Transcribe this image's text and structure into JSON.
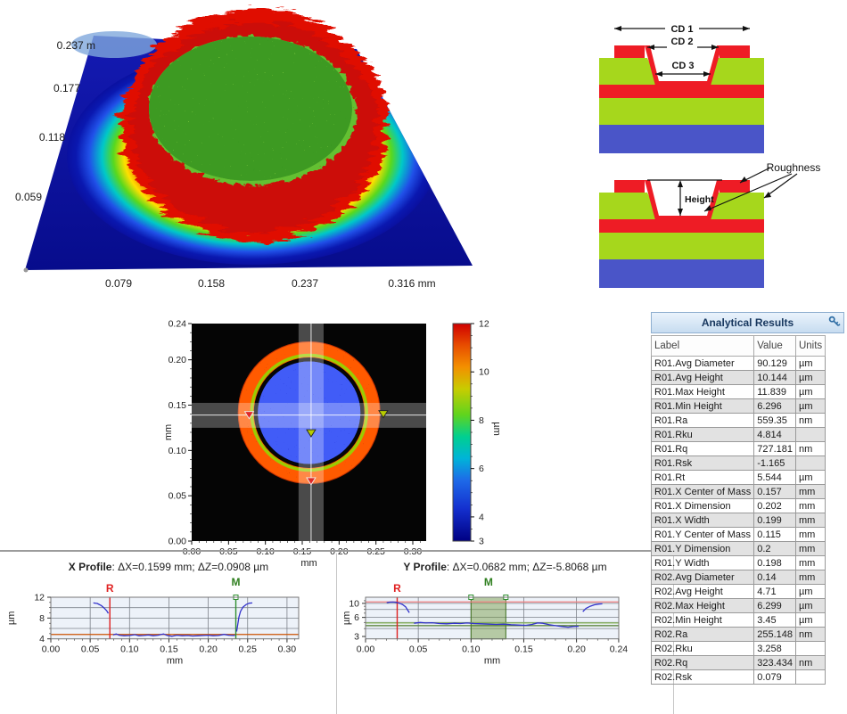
{
  "surface3d": {
    "y_axis_labels": [
      "0.237 m",
      "0.177",
      "0.118",
      "0.059"
    ],
    "x_axis_labels": [
      "0.079",
      "0.158",
      "0.237",
      "0.316 mm"
    ]
  },
  "schematic": {
    "cd1": "CD 1",
    "cd2": "CD 2",
    "cd3": "CD 3",
    "height": "Height",
    "roughness": "Roughness",
    "colors": {
      "red": "#EE1C25",
      "green": "#A6D71C",
      "blue": "#4A55C8"
    }
  },
  "results": {
    "title": "Analytical Results",
    "icon": "key-icon",
    "columns": [
      "Label",
      "Value",
      "Units"
    ],
    "rows": [
      [
        "R01.Avg Diameter",
        "90.129",
        "µm"
      ],
      [
        "R01.Avg Height",
        "10.144",
        "µm"
      ],
      [
        "R01.Max Height",
        "11.839",
        "µm"
      ],
      [
        "R01.Min Height",
        "6.296",
        "µm"
      ],
      [
        "R01.Ra",
        "559.35",
        "nm"
      ],
      [
        "R01.Rku",
        "4.814",
        ""
      ],
      [
        "R01.Rq",
        "727.181",
        "nm"
      ],
      [
        "R01.Rsk",
        "-1.165",
        ""
      ],
      [
        "R01.Rt",
        "5.544",
        "µm"
      ],
      [
        "R01.X Center of Mass",
        "0.157",
        "mm"
      ],
      [
        "R01.X Dimension",
        "0.202",
        "mm"
      ],
      [
        "R01.X Width",
        "0.199",
        "mm"
      ],
      [
        "R01.Y Center of Mass",
        "0.115",
        "mm"
      ],
      [
        "R01.Y Dimension",
        "0.2",
        "mm"
      ],
      [
        "R01.Y Width",
        "0.198",
        "mm"
      ],
      [
        "R02.Avg Diameter",
        "0.14",
        "mm"
      ],
      [
        "R02.Avg Height",
        "4.71",
        "µm"
      ],
      [
        "R02.Max Height",
        "6.299",
        "µm"
      ],
      [
        "R02.Min Height",
        "3.45",
        "µm"
      ],
      [
        "R02.Ra",
        "255.148",
        "nm"
      ],
      [
        "R02.Rku",
        "3.258",
        ""
      ],
      [
        "R02.Rq",
        "323.434",
        "nm"
      ],
      [
        "R02.Rsk",
        "0.079",
        ""
      ]
    ]
  },
  "chart_data": [
    {
      "id": "surface_3d",
      "type": "heatmap",
      "title": "3D surface view of circular mesa",
      "x_axis_labels_mm": [
        0.079,
        0.158,
        0.237,
        0.316
      ],
      "y_axis_labels_mm": [
        0.237,
        0.177,
        0.118,
        0.059
      ],
      "feature": {
        "shape": "circular mesa on flat plane",
        "rim_color": "red (~11-12 µm)",
        "top_color": "green rough texture",
        "plane_color": "dark blue",
        "skirt": "rainbow gradient red-yellow-green-cyan-blue at front"
      }
    },
    {
      "id": "topview",
      "type": "heatmap",
      "xlabel": "mm",
      "ylabel": "mm",
      "xlim": [
        0,
        0.318
      ],
      "ylim": [
        0,
        0.24
      ],
      "x_ticks": [
        0,
        0.05,
        0.1,
        0.15,
        0.2,
        0.25,
        0.3
      ],
      "y_ticks": [
        0,
        0.05,
        0.1,
        0.15,
        0.2,
        0.24
      ],
      "colorbar": {
        "label": "µm",
        "min": 3,
        "max": 12,
        "ticks": [
          3,
          4,
          6,
          8,
          10,
          12
        ]
      },
      "feature": {
        "center_mm": [
          0.159,
          0.142
        ],
        "outer_radius_mm": 0.097,
        "ring_inner_radius_mm": 0.075,
        "ring_height_um": [
          8,
          12
        ],
        "interior_height_um": [
          3,
          5
        ],
        "background": "black"
      },
      "cursors": {
        "vertical_mm": 0.162,
        "v_band": [
          0.145,
          0.179
        ],
        "horizontal_mm": 0.139,
        "h_band": [
          0.125,
          0.1525
        ]
      },
      "markers": [
        {
          "color": "#e02828",
          "x": 0.078,
          "y": 0.139
        },
        {
          "color": "#b8cc00",
          "x": 0.26,
          "y": 0.14
        },
        {
          "color": "#b8cc00",
          "x": 0.162,
          "y": 0.119
        },
        {
          "color": "#e02828",
          "x": 0.162,
          "y": 0.066
        }
      ]
    },
    {
      "id": "x_profile",
      "type": "line",
      "title": "X Profile",
      "subtitle": ": ΔX=0.1599 mm; ΔZ=0.0908 µm",
      "xlabel": "mm",
      "ylabel": "µm",
      "r_label": "R",
      "m_label": "M",
      "xlim": [
        0,
        0.3147
      ],
      "ylim": [
        4,
        12
      ],
      "y_scale": "linear",
      "x_ticks": [
        0,
        0.05,
        0.1,
        0.15,
        0.2,
        0.25,
        0.3
      ],
      "x_minor": 0.01,
      "y_ticks": [
        12,
        8,
        4
      ],
      "y_minor": [
        5,
        6,
        7,
        9,
        10,
        11
      ],
      "grid_y": [
        6,
        8,
        10,
        12
      ],
      "cursors": {
        "R": 0.075,
        "M": 0.235
      },
      "ref_lines": [
        {
          "color": "#cc5200",
          "y": 4.85
        }
      ],
      "series": [
        {
          "name": "X height profile",
          "color": "#3333cc",
          "segments": [
            [
              [
                0.054,
                10.9
              ],
              [
                0.059,
                10.8
              ],
              [
                0.064,
                10.4
              ],
              [
                0.068,
                9.9
              ],
              [
                0.071,
                9.4
              ],
              [
                0.073,
                8.9
              ]
            ],
            [
              [
                0.079,
                4.75
              ],
              [
                0.083,
                4.95
              ],
              [
                0.087,
                4.7
              ],
              [
                0.093,
                4.6
              ],
              [
                0.1,
                4.65
              ],
              [
                0.107,
                4.8
              ],
              [
                0.112,
                4.6
              ],
              [
                0.118,
                4.65
              ],
              [
                0.124,
                4.75
              ],
              [
                0.13,
                4.6
              ],
              [
                0.136,
                4.7
              ],
              [
                0.143,
                4.95
              ],
              [
                0.148,
                4.65
              ],
              [
                0.154,
                4.5
              ],
              [
                0.16,
                4.7
              ],
              [
                0.167,
                4.6
              ],
              [
                0.174,
                4.65
              ],
              [
                0.18,
                4.55
              ],
              [
                0.187,
                4.6
              ],
              [
                0.194,
                4.65
              ],
              [
                0.2,
                4.7
              ],
              [
                0.206,
                4.6
              ],
              [
                0.213,
                4.65
              ],
              [
                0.22,
                4.85
              ],
              [
                0.226,
                4.7
              ],
              [
                0.232,
                4.65
              ],
              [
                0.234,
                4.7
              ]
            ],
            [
              [
                0.236,
                5.4
              ],
              [
                0.2375,
                6.8
              ],
              [
                0.239,
                8.2
              ],
              [
                0.241,
                9.3
              ],
              [
                0.244,
                10.1
              ],
              [
                0.248,
                10.6
              ],
              [
                0.252,
                10.85
              ],
              [
                0.256,
                10.9
              ]
            ]
          ]
        }
      ]
    },
    {
      "id": "y_profile",
      "type": "line",
      "title": "Y Profile",
      "subtitle": ": ΔX=0.0682 mm; ΔZ=-5.8068 µm",
      "xlabel": "mm",
      "ylabel": "µm",
      "r_label": "R",
      "m_label": "M",
      "xlim": [
        0,
        0.24
      ],
      "ylim": [
        2.75,
        12.5
      ],
      "y_scale": "log",
      "x_ticks": [
        0,
        0.05,
        0.1,
        0.15,
        0.2,
        0.24
      ],
      "x_minor": 0.01,
      "y_ticks": [
        10,
        6,
        3
      ],
      "y_minor": [
        4,
        5,
        7,
        8,
        9,
        11
      ],
      "grid_y": [
        4,
        5,
        6,
        8,
        10
      ],
      "cursors": {
        "R": 0.03,
        "M_region": [
          0.1,
          0.133
        ]
      },
      "ref_lines": [
        {
          "color": "#f08080",
          "y": 10.55
        },
        {
          "color": "#8ab95a",
          "y": 4.9
        },
        {
          "color": "#4e7a2e",
          "y": 4.45
        }
      ],
      "series": [
        {
          "name": "Y height profile",
          "color": "#3333cc",
          "segments": [
            [
              [
                0.02,
                10.25
              ],
              [
                0.023,
                10.45
              ],
              [
                0.026,
                10.5
              ],
              [
                0.029,
                10.4
              ],
              [
                0.032,
                10.1
              ],
              [
                0.035,
                9.6
              ],
              [
                0.038,
                8.8
              ],
              [
                0.04,
                7.8
              ],
              [
                0.0415,
                7.1
              ]
            ],
            [
              [
                0.046,
                4.85
              ],
              [
                0.052,
                5.0
              ],
              [
                0.057,
                4.9
              ],
              [
                0.063,
                4.95
              ],
              [
                0.07,
                4.8
              ],
              [
                0.077,
                4.75
              ],
              [
                0.084,
                4.85
              ],
              [
                0.09,
                4.8
              ],
              [
                0.096,
                4.9
              ],
              [
                0.103,
                4.8
              ],
              [
                0.11,
                4.75
              ],
              [
                0.117,
                4.7
              ],
              [
                0.124,
                4.65
              ],
              [
                0.131,
                4.7
              ],
              [
                0.138,
                4.6
              ],
              [
                0.145,
                4.55
              ],
              [
                0.152,
                4.5
              ],
              [
                0.158,
                4.65
              ],
              [
                0.163,
                4.9
              ],
              [
                0.168,
                4.85
              ],
              [
                0.174,
                4.6
              ],
              [
                0.18,
                4.45
              ],
              [
                0.186,
                4.3
              ],
              [
                0.192,
                4.2
              ],
              [
                0.197,
                4.3
              ],
              [
                0.202,
                4.35
              ]
            ],
            [
              [
                0.206,
                7.4
              ],
              [
                0.209,
                8.3
              ],
              [
                0.213,
                9.0
              ],
              [
                0.217,
                9.5
              ],
              [
                0.221,
                9.75
              ],
              [
                0.2245,
                9.85
              ]
            ]
          ]
        }
      ]
    }
  ]
}
